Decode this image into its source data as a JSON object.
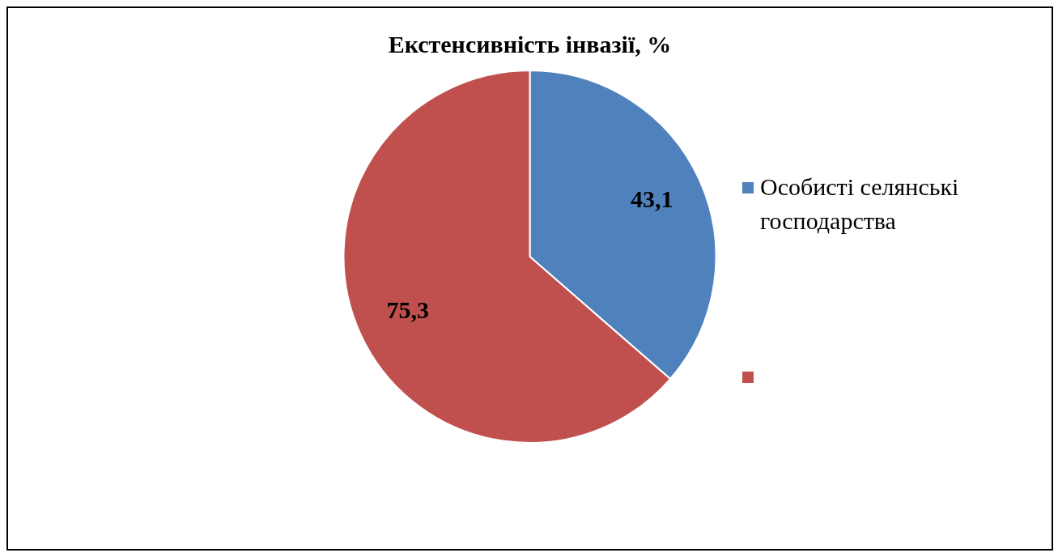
{
  "chart_data": {
    "type": "pie",
    "title": "Екстенсивність інвазії, %",
    "categories": [
      "Особисті селянські господарства",
      null
    ],
    "values": [
      43.1,
      75.3
    ],
    "colors": [
      "#4f81bd",
      "#c0504d"
    ],
    "value_labels": [
      "43,1",
      "75,3"
    ],
    "legend": "right"
  }
}
